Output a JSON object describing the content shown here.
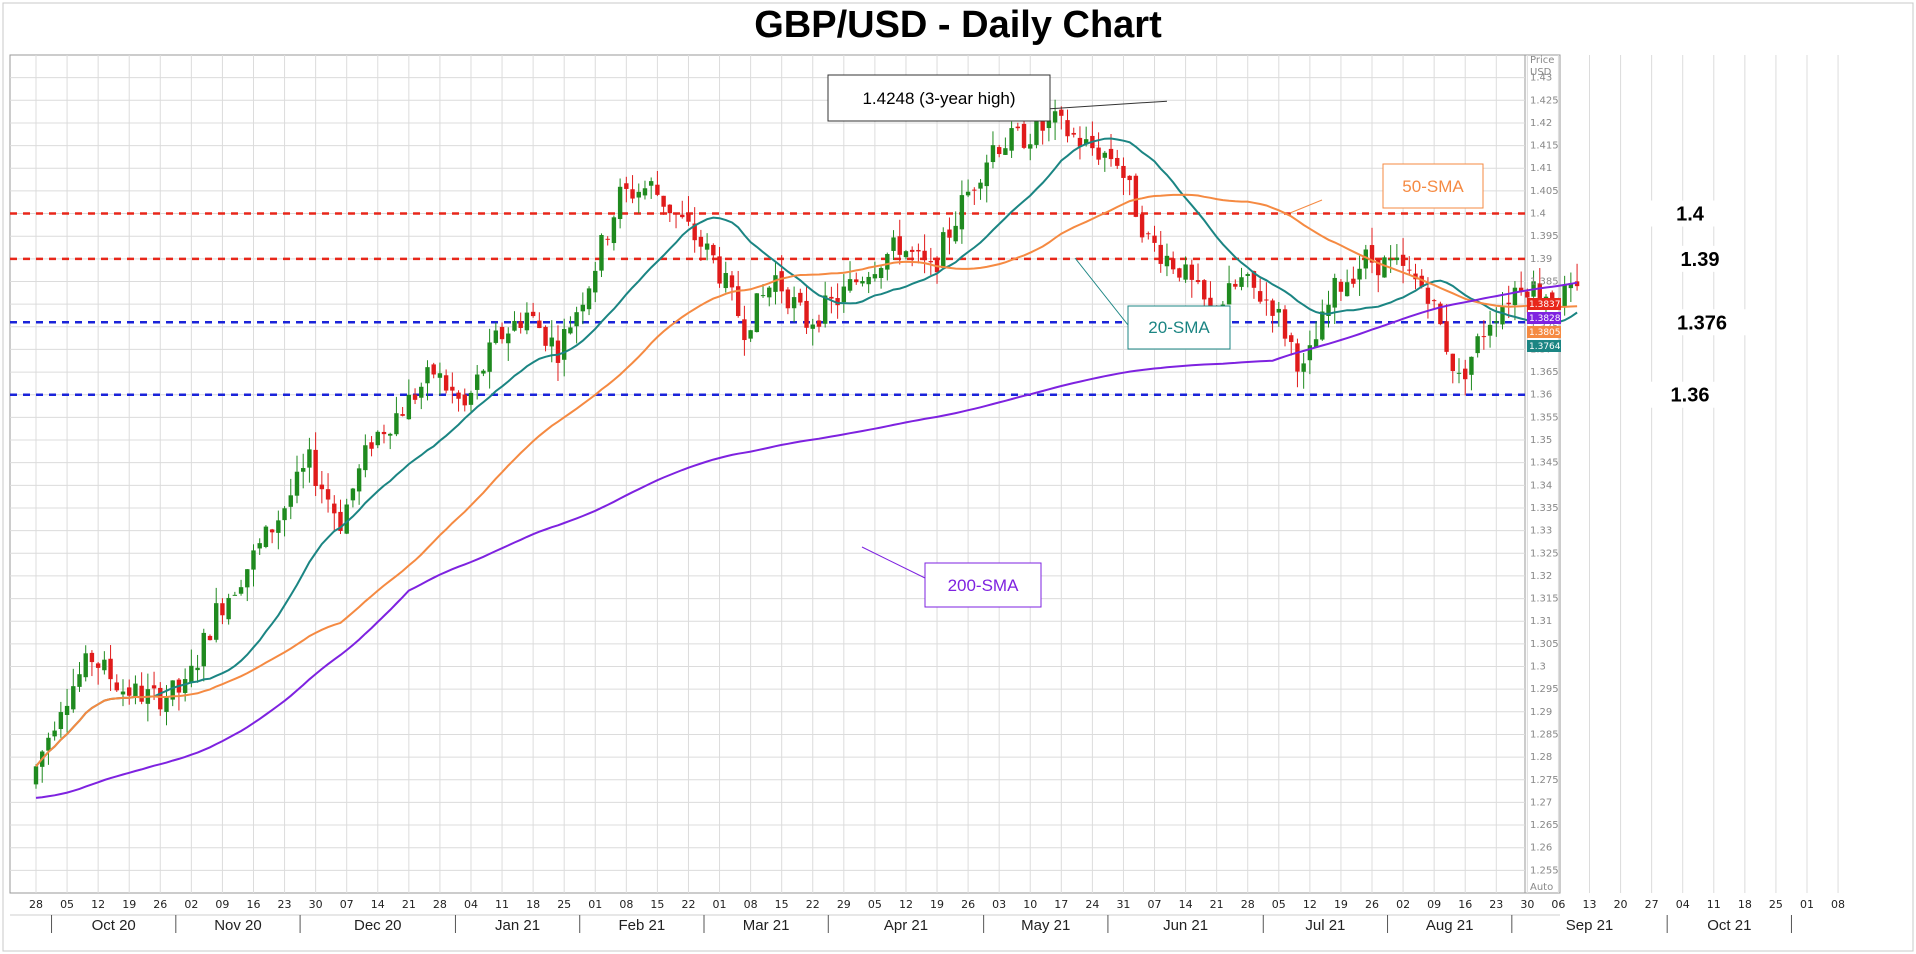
{
  "chart_data": {
    "type": "candlestick",
    "title": "GBP/USD - Daily Chart",
    "y_axis_title": [
      "Price",
      "USD"
    ],
    "y_axis_footer": "Auto",
    "ylim": [
      1.25,
      1.435
    ],
    "y_ticks": [
      "1.255",
      "1.26",
      "1.265",
      "1.27",
      "1.275",
      "1.28",
      "1.285",
      "1.29",
      "1.295",
      "1.3",
      "1.305",
      "1.31",
      "1.315",
      "1.32",
      "1.325",
      "1.33",
      "1.335",
      "1.34",
      "1.345",
      "1.35",
      "1.355",
      "1.36",
      "1.365",
      "1.37",
      "1.375",
      "1.38",
      "1.385",
      "1.39",
      "1.395",
      "1.4",
      "1.405",
      "1.41",
      "1.415",
      "1.42",
      "1.425",
      "1.43"
    ],
    "x_day_labels": [
      "28",
      "05",
      "12",
      "19",
      "26",
      "02",
      "09",
      "16",
      "23",
      "30",
      "07",
      "14",
      "21",
      "28",
      "04",
      "11",
      "18",
      "25",
      "01",
      "08",
      "15",
      "22",
      "01",
      "08",
      "15",
      "22",
      "29",
      "05",
      "12",
      "19",
      "26",
      "03",
      "10",
      "17",
      "24",
      "31",
      "07",
      "14",
      "21",
      "28",
      "05",
      "12",
      "19",
      "26",
      "02",
      "09",
      "16",
      "23",
      "30",
      "06",
      "13",
      "20",
      "27",
      "04",
      "11",
      "18",
      "25",
      "01",
      "08"
    ],
    "x_month_labels": [
      "Oct 20",
      "Nov 20",
      "Dec 20",
      "Jan 21",
      "Feb 21",
      "Mar 21",
      "Apr 21",
      "May 21",
      "Jun 21",
      "Jul 21",
      "Aug 21",
      "Sep 21",
      "Oct 21"
    ],
    "close_series": [
      {
        "week": 0,
        "value": 1.274
      },
      {
        "week": 1,
        "value": 1.292
      },
      {
        "week": 2,
        "value": 1.302
      },
      {
        "week": 3,
        "value": 1.295
      },
      {
        "week": 4,
        "value": 1.293
      },
      {
        "week": 5,
        "value": 1.295
      },
      {
        "week": 6,
        "value": 1.312
      },
      {
        "week": 7,
        "value": 1.322
      },
      {
        "week": 8,
        "value": 1.333
      },
      {
        "week": 9,
        "value": 1.345
      },
      {
        "week": 10,
        "value": 1.332
      },
      {
        "week": 11,
        "value": 1.35
      },
      {
        "week": 12,
        "value": 1.357
      },
      {
        "week": 13,
        "value": 1.365
      },
      {
        "week": 14,
        "value": 1.357
      },
      {
        "week": 15,
        "value": 1.372
      },
      {
        "week": 16,
        "value": 1.378
      },
      {
        "week": 17,
        "value": 1.37
      },
      {
        "week": 18,
        "value": 1.385
      },
      {
        "week": 19,
        "value": 1.404
      },
      {
        "week": 20,
        "value": 1.406
      },
      {
        "week": 21,
        "value": 1.398
      },
      {
        "week": 22,
        "value": 1.39
      },
      {
        "week": 23,
        "value": 1.375
      },
      {
        "week": 24,
        "value": 1.386
      },
      {
        "week": 25,
        "value": 1.376
      },
      {
        "week": 26,
        "value": 1.381
      },
      {
        "week": 27,
        "value": 1.388
      },
      {
        "week": 28,
        "value": 1.393
      },
      {
        "week": 29,
        "value": 1.387
      },
      {
        "week": 30,
        "value": 1.402
      },
      {
        "week": 31,
        "value": 1.415
      },
      {
        "week": 32,
        "value": 1.417
      },
      {
        "week": 33,
        "value": 1.42
      },
      {
        "week": 34,
        "value": 1.415
      },
      {
        "week": 35,
        "value": 1.412
      },
      {
        "week": 36,
        "value": 1.394
      },
      {
        "week": 37,
        "value": 1.388
      },
      {
        "week": 38,
        "value": 1.378
      },
      {
        "week": 39,
        "value": 1.385
      },
      {
        "week": 40,
        "value": 1.38
      },
      {
        "week": 41,
        "value": 1.365
      },
      {
        "week": 42,
        "value": 1.383
      },
      {
        "week": 43,
        "value": 1.39
      },
      {
        "week": 44,
        "value": 1.388
      },
      {
        "week": 45,
        "value": 1.383
      },
      {
        "week": 46,
        "value": 1.363
      },
      {
        "week": 47,
        "value": 1.377
      },
      {
        "week": 48,
        "value": 1.385
      },
      {
        "week": 49,
        "value": 1.382
      }
    ],
    "moving_averages": [
      {
        "name": "20-SMA",
        "color": "#1b8583"
      },
      {
        "name": "50-SMA",
        "color": "#f58a42"
      },
      {
        "name": "200-SMA",
        "color": "#7e22e0"
      }
    ],
    "horizontal_levels": [
      {
        "value": 1.4,
        "label": "1.4",
        "color": "#e8271a"
      },
      {
        "value": 1.39,
        "label": "1.39",
        "color": "#e8271a"
      },
      {
        "value": 1.376,
        "label": "1.376",
        "color": "#1a23d9"
      },
      {
        "value": 1.36,
        "label": "1.36",
        "color": "#1a23d9"
      }
    ],
    "annotations": [
      {
        "text": "1.4248 (3-year high)",
        "color": "#000000"
      },
      {
        "text": "50-SMA",
        "color": "#f58a42"
      },
      {
        "text": "20-SMA",
        "color": "#1b8583"
      },
      {
        "text": "200-SMA",
        "color": "#7e22e0"
      }
    ],
    "price_tags": [
      {
        "value": 1.3837,
        "label": "1.3837",
        "color": "#e8271a"
      },
      {
        "value": 1.3828,
        "label": "1.3828",
        "color": "#7e22e0"
      },
      {
        "value": 1.3805,
        "label": "1.3805",
        "color": "#f58a42"
      },
      {
        "value": 1.3764,
        "label": "1.3764",
        "color": "#1b8583"
      }
    ],
    "candle_colors": {
      "up": "#1f8a1f",
      "down": "#e01b1b"
    }
  }
}
